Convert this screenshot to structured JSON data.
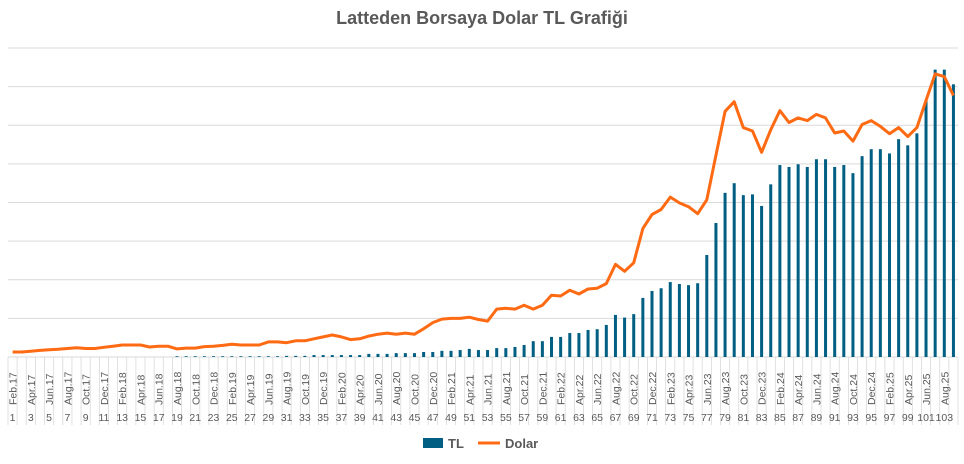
{
  "chart_data": {
    "type": "bar+line",
    "title": "Latteden Borsaya Dolar TL Grafiği",
    "xlabel": "",
    "ylabel": "",
    "ylim": [
      0,
      800
    ],
    "grid": true,
    "legend_position": "bottom",
    "month_labels": [
      "Feb.17",
      "Apr.17",
      "Jun.17",
      "Aug.17",
      "Oct.17",
      "Dec.17",
      "Feb.18",
      "Apr.18",
      "Jun.18",
      "Aug.18",
      "Oct.18",
      "Dec.18",
      "Feb.19",
      "Apr.19",
      "Jun.19",
      "Aug.19",
      "Oct.19",
      "Dec.19",
      "Feb.20",
      "Apr.20",
      "Jun.20",
      "Aug.20",
      "Oct.20",
      "Dec.20",
      "Feb.21",
      "Apr.21",
      "Jun.21",
      "Aug.21",
      "Oct.21",
      "Dec.21",
      "Feb.22",
      "Apr.22",
      "Jun.22",
      "Aug.22",
      "Oct.22",
      "Dec.22",
      "Feb.23",
      "Apr.23",
      "Jun.23",
      "Aug.23",
      "Oct.23",
      "Dec.23",
      "Feb.24",
      "Apr.24",
      "Jun.24",
      "Aug.24",
      "Oct.24",
      "Dec.24",
      "Feb.25",
      "Apr.25",
      "Jun.25",
      "Aug.25"
    ],
    "number_labels": [
      "1",
      "3",
      "5",
      "7",
      "9",
      "11",
      "13",
      "15",
      "17",
      "19",
      "21",
      "23",
      "25",
      "27",
      "29",
      "31",
      "33",
      "35",
      "37",
      "39",
      "41",
      "43",
      "45",
      "47",
      "49",
      "51",
      "53",
      "55",
      "57",
      "59",
      "61",
      "63",
      "65",
      "67",
      "69",
      "71",
      "73",
      "75",
      "77",
      "79",
      "81",
      "83",
      "85",
      "87",
      "89",
      "91",
      "93",
      "95",
      "97",
      "99",
      "101",
      "103"
    ],
    "category_count": 104,
    "series": [
      {
        "name": "TL",
        "type": "bar",
        "color": "#005F82",
        "values": [
          0,
          0,
          0,
          0,
          0,
          0,
          0,
          0,
          0,
          0,
          0,
          0,
          0,
          0,
          0,
          0,
          0,
          0,
          2,
          2,
          2,
          2,
          2,
          2,
          2,
          2,
          2,
          2,
          2,
          2,
          3,
          3,
          3,
          5,
          5,
          5,
          5,
          5,
          5,
          8,
          8,
          8,
          10,
          10,
          10,
          13,
          13,
          16,
          16,
          18,
          21,
          18,
          18,
          23,
          23,
          26,
          31,
          41,
          41,
          52,
          52,
          62,
          62,
          70,
          72,
          83,
          109,
          102,
          111,
          153,
          171,
          178,
          194,
          189,
          186,
          191,
          264,
          347,
          425,
          450,
          419,
          421,
          391,
          447,
          497,
          492,
          499,
          492,
          512,
          512,
          492,
          497,
          476,
          520,
          538,
          538,
          527,
          564,
          548,
          579,
          664,
          744,
          744,
          706
        ]
      },
      {
        "name": "Dolar",
        "type": "line",
        "color": "#FF6A13",
        "values": [
          13,
          13,
          15,
          17,
          19,
          20,
          22,
          24,
          22,
          22,
          25,
          28,
          31,
          31,
          31,
          26,
          28,
          28,
          21,
          23,
          23,
          27,
          28,
          30,
          33,
          31,
          31,
          31,
          39,
          39,
          37,
          42,
          42,
          47,
          52,
          57,
          52,
          45,
          47,
          54,
          59,
          62,
          59,
          62,
          59,
          73,
          89,
          98,
          100,
          100,
          103,
          97,
          93,
          124,
          126,
          124,
          134,
          124,
          134,
          160,
          158,
          173,
          163,
          176,
          178,
          190,
          240,
          222,
          244,
          333,
          369,
          382,
          414,
          399,
          389,
          371,
          407,
          522,
          636,
          661,
          594,
          585,
          530,
          588,
          638,
          607,
          619,
          612,
          628,
          619,
          580,
          585,
          559,
          602,
          612,
          597,
          578,
          594,
          571,
          594,
          664,
          733,
          726,
          677
        ]
      }
    ]
  }
}
